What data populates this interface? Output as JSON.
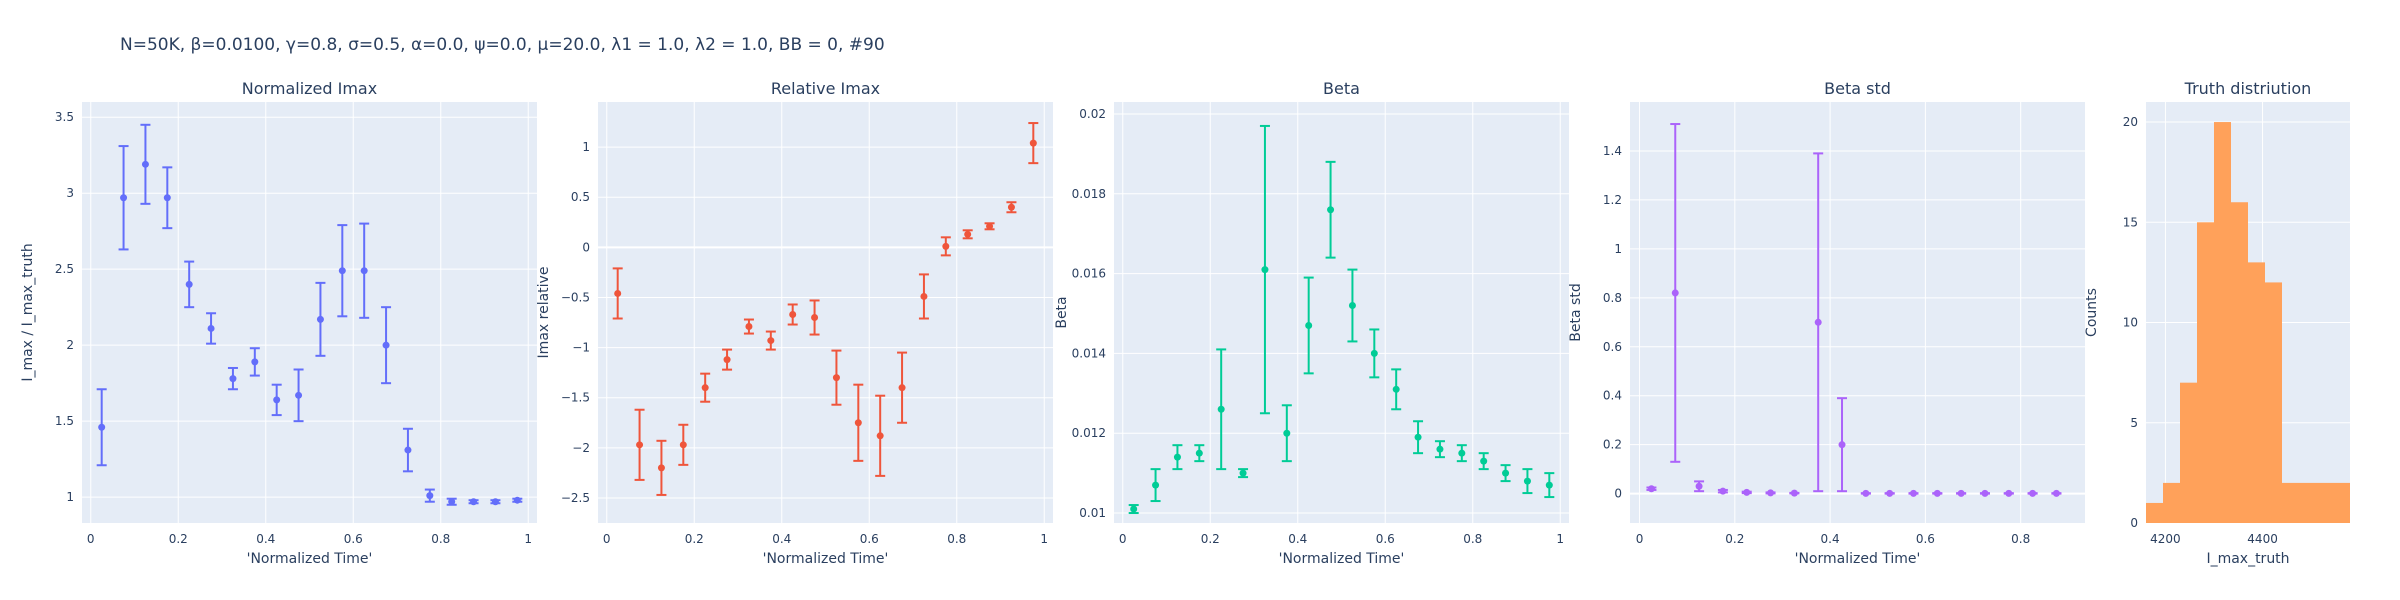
{
  "figure_title": "N=50K, β=0.0100, γ=0.8, σ=0.5,  α=0.0, ψ=0.0, μ=20.0, λ1 = 1.0, λ2 = 1.0, BB = 0, #90",
  "colors": {
    "plot_bg": "#e5ecf6",
    "grid": "#ffffff",
    "text": "#2a3f5f"
  },
  "chart_data": [
    {
      "type": "scatter",
      "error_bars": true,
      "title": "Normalized Imax",
      "xlabel": "'Normalized Time'",
      "ylabel": "I_max / I_max_truth",
      "color": "#636efa",
      "xlim": [
        -0.02,
        1.02
      ],
      "ylim": [
        0.83,
        3.6
      ],
      "xticks": [
        0,
        0.2,
        0.4,
        0.6,
        0.8,
        1
      ],
      "xtick_labels": [
        "0",
        "0.2",
        "0.4",
        "0.6",
        "0.8",
        "1"
      ],
      "yticks": [
        1,
        1.5,
        2,
        2.5,
        3,
        3.5
      ],
      "ytick_labels": [
        "1",
        "1.5",
        "2",
        "2.5",
        "3",
        "3.5"
      ],
      "x": [
        0.025,
        0.075,
        0.125,
        0.175,
        0.225,
        0.275,
        0.325,
        0.375,
        0.425,
        0.475,
        0.525,
        0.575,
        0.625,
        0.675,
        0.725,
        0.775,
        0.825,
        0.875,
        0.925,
        0.975
      ],
      "y": [
        1.46,
        2.97,
        3.19,
        2.97,
        2.4,
        2.11,
        1.78,
        1.89,
        1.64,
        1.67,
        2.17,
        2.49,
        2.49,
        2.0,
        1.31,
        1.01,
        0.97,
        0.97,
        0.97,
        0.98
      ],
      "err": [
        0.25,
        0.34,
        0.26,
        0.2,
        0.15,
        0.1,
        0.07,
        0.09,
        0.1,
        0.17,
        0.24,
        0.3,
        0.31,
        0.25,
        0.14,
        0.04,
        0.02,
        0.01,
        0.01,
        0.01
      ]
    },
    {
      "type": "scatter",
      "error_bars": true,
      "title": "Relative Imax",
      "xlabel": "'Normalized Time'",
      "ylabel": "Imax relative",
      "color": "#ef553b",
      "xlim": [
        -0.02,
        1.02
      ],
      "ylim": [
        -2.75,
        1.45
      ],
      "xticks": [
        0,
        0.2,
        0.4,
        0.6,
        0.8,
        1
      ],
      "xtick_labels": [
        "0",
        "0.2",
        "0.4",
        "0.6",
        "0.8",
        "1"
      ],
      "yticks": [
        -2.5,
        -2,
        -1.5,
        -1,
        -0.5,
        0,
        0.5,
        1
      ],
      "ytick_labels": [
        "−2.5",
        "−2",
        "−1.5",
        "−1",
        "−0.5",
        "0",
        "0.5",
        "1"
      ],
      "x": [
        0.025,
        0.075,
        0.125,
        0.175,
        0.225,
        0.275,
        0.325,
        0.375,
        0.425,
        0.475,
        0.525,
        0.575,
        0.625,
        0.675,
        0.725,
        0.775,
        0.825,
        0.875,
        0.925,
        0.975
      ],
      "y": [
        -0.46,
        -1.97,
        -2.2,
        -1.97,
        -1.4,
        -1.12,
        -0.79,
        -0.93,
        -0.67,
        -0.7,
        -1.3,
        -1.75,
        -1.88,
        -1.4,
        -0.49,
        0.01,
        0.13,
        0.21,
        0.4,
        1.04
      ],
      "err": [
        0.25,
        0.35,
        0.27,
        0.2,
        0.14,
        0.1,
        0.07,
        0.09,
        0.1,
        0.17,
        0.27,
        0.38,
        0.4,
        0.35,
        0.22,
        0.09,
        0.04,
        0.03,
        0.05,
        0.2
      ]
    },
    {
      "type": "scatter",
      "error_bars": true,
      "title": "Beta",
      "xlabel": "'Normalized Time'",
      "ylabel": "Beta",
      "color": "#00cc96",
      "xlim": [
        -0.02,
        1.02
      ],
      "ylim": [
        0.00975,
        0.0203
      ],
      "xticks": [
        0,
        0.2,
        0.4,
        0.6,
        0.8,
        1
      ],
      "xtick_labels": [
        "0",
        "0.2",
        "0.4",
        "0.6",
        "0.8",
        "1"
      ],
      "yticks": [
        0.01,
        0.012,
        0.014,
        0.016,
        0.018,
        0.02
      ],
      "ytick_labels": [
        "0.01",
        "0.012",
        "0.014",
        "0.016",
        "0.018",
        "0.02"
      ],
      "x": [
        0.025,
        0.075,
        0.125,
        0.175,
        0.225,
        0.275,
        0.325,
        0.375,
        0.425,
        0.475,
        0.525,
        0.575,
        0.625,
        0.675,
        0.725,
        0.775,
        0.825,
        0.875,
        0.925,
        0.975
      ],
      "y": [
        0.0101,
        0.0107,
        0.0114,
        0.0115,
        0.0126,
        0.011,
        0.0161,
        0.012,
        0.0147,
        0.0176,
        0.0152,
        0.014,
        0.0131,
        0.0119,
        0.0116,
        0.0115,
        0.0113,
        0.011,
        0.0108,
        0.0107
      ],
      "err": [
        0.0001,
        0.0004,
        0.0003,
        0.0002,
        0.0015,
        0.0001,
        0.0036,
        0.0007,
        0.0012,
        0.0012,
        0.0009,
        0.0006,
        0.0005,
        0.0004,
        0.0002,
        0.0002,
        0.0002,
        0.0002,
        0.0003,
        0.0003
      ]
    },
    {
      "type": "scatter",
      "error_bars": true,
      "title": "Beta std",
      "xlabel": "'Normalized Time'",
      "ylabel": "Beta std",
      "color": "#ab63fa",
      "xlim": [
        -0.02,
        0.935
      ],
      "ylim": [
        -0.12,
        1.6
      ],
      "xticks": [
        0,
        0.2,
        0.4,
        0.6,
        0.8
      ],
      "xtick_labels": [
        "0",
        "0.2",
        "0.4",
        "0.6",
        "0.8"
      ],
      "yticks": [
        0,
        0.2,
        0.4,
        0.6,
        0.8,
        1,
        1.2,
        1.4
      ],
      "ytick_labels": [
        "0",
        "0.2",
        "0.4",
        "0.6",
        "0.8",
        "1",
        "1.2",
        "1.4"
      ],
      "x": [
        0.025,
        0.075,
        0.125,
        0.175,
        0.225,
        0.275,
        0.325,
        0.375,
        0.425,
        0.475,
        0.525,
        0.575,
        0.625,
        0.675,
        0.725,
        0.775,
        0.825,
        0.875
      ],
      "y": [
        0.02,
        0.82,
        0.03,
        0.01,
        0.005,
        0.003,
        0.002,
        0.7,
        0.2,
        0.001,
        0.001,
        0.001,
        0.001,
        0.001,
        0.001,
        0.001,
        0.001,
        0.001
      ],
      "err": [
        0.005,
        0.69,
        0.02,
        0.005,
        0.003,
        0.002,
        0.001,
        0.69,
        0.19,
        0.001,
        0.001,
        0.001,
        0.001,
        0.001,
        0.001,
        0.001,
        0.001,
        0.001
      ]
    },
    {
      "type": "bar",
      "histogram": true,
      "title": "Truth distriution",
      "xlabel": "I_max_truth",
      "ylabel": "Counts",
      "color": "#ffa15a",
      "xlim": [
        4160,
        4580
      ],
      "ylim": [
        0,
        21
      ],
      "xticks": [
        4200,
        4400
      ],
      "xtick_labels": [
        "4200",
        "4400"
      ],
      "yticks": [
        0,
        5,
        10,
        15,
        20
      ],
      "ytick_labels": [
        "0",
        "5",
        "10",
        "15",
        "20"
      ],
      "bin_edges": [
        4160,
        4195,
        4230,
        4265,
        4300,
        4335,
        4370,
        4405,
        4440,
        4475,
        4510,
        4545,
        4580
      ],
      "counts": [
        1,
        2,
        7,
        15,
        20,
        16,
        13,
        12,
        2,
        2,
        2,
        2
      ]
    }
  ]
}
